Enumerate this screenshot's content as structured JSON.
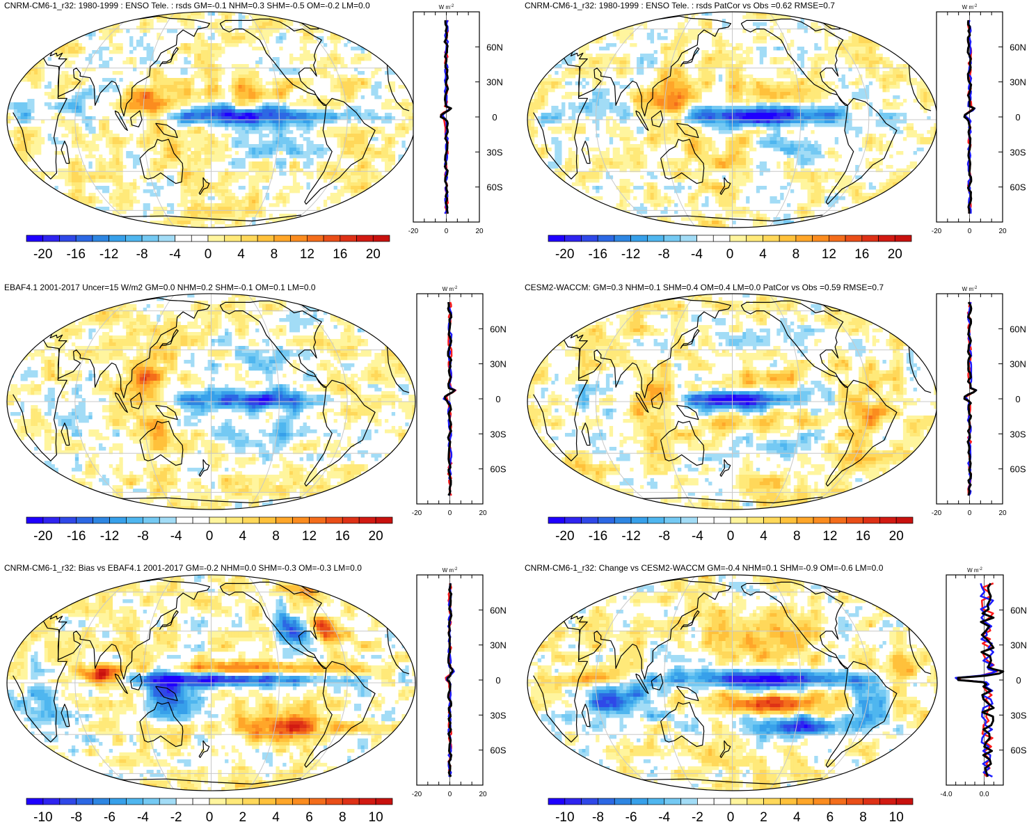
{
  "colors": {
    "positive": "#e0201b",
    "negative": "#1b2bd6",
    "zonal_red": "#ff1a1a",
    "zonal_blue": "#1a1aff",
    "zonal_black": "#000000",
    "land_line": "#000000",
    "graticule": "#c8c8c8"
  },
  "chart_data": [
    {
      "type": "heatmap",
      "title": "CNRM-CM6-1_r32: 1980-1999 : ENSO Tele. : rsds GM=-0.1 NHM=0.3 SHM=-0.5 OM=-0.2 LM=0.0",
      "colorbar": {
        "ticks": [
          "-20",
          "-16",
          "-12",
          "-8",
          "-4",
          "0",
          "4",
          "8",
          "12",
          "16",
          "20"
        ],
        "range": [
          -22,
          22
        ]
      },
      "zonal_profile": {
        "unit": "W m",
        "unit_exp": "-2",
        "xticks": [
          "-20",
          "0",
          "20"
        ],
        "xlim": [
          -20,
          20
        ],
        "lat_ticks": [
          "60N",
          "30N",
          "0",
          "30S",
          "60S"
        ],
        "lat_values": [
          60,
          30,
          0,
          -30,
          -60
        ],
        "style": "ensso"
      },
      "features": [
        {
          "lon": -150,
          "lat": 2,
          "w": 95,
          "h": 5,
          "v": -20
        },
        {
          "lon": -120,
          "lat": -15,
          "w": 40,
          "h": 8,
          "v": -7
        },
        {
          "lon": 125,
          "lat": 8,
          "w": 25,
          "h": 14,
          "v": 10
        },
        {
          "lon": 160,
          "lat": -22,
          "w": 30,
          "h": 10,
          "v": 5
        },
        {
          "lon": -150,
          "lat": 16,
          "w": 60,
          "h": 7,
          "v": 4
        },
        {
          "lon": 60,
          "lat": 8,
          "w": 25,
          "h": 10,
          "v": -5
        },
        {
          "lon": 20,
          "lat": 5,
          "w": 15,
          "h": 10,
          "v": -5
        }
      ]
    },
    {
      "type": "heatmap",
      "title": "CNRM-CM6-1_r32: 1980-1999 : ENSO Tele. : rsds PatCor vs Obs =0.62 RMSE=0.7",
      "colorbar": {
        "ticks": [
          "-20",
          "-16",
          "-12",
          "-8",
          "-4",
          "0",
          "4",
          "8",
          "12",
          "16",
          "20"
        ],
        "range": [
          -22,
          22
        ]
      },
      "zonal_profile": {
        "unit": "W m",
        "unit_exp": "-2",
        "xticks": [
          "-20",
          "0",
          "20"
        ],
        "xlim": [
          -20,
          20
        ],
        "lat_ticks": [
          "60N",
          "30N",
          "0",
          "30S",
          "60S"
        ],
        "lat_values": [
          60,
          30,
          0,
          -30,
          -60
        ],
        "style": "ensso"
      },
      "features": [
        {
          "lon": -150,
          "lat": 2,
          "w": 95,
          "h": 5,
          "v": -20
        },
        {
          "lon": -120,
          "lat": -15,
          "w": 40,
          "h": 8,
          "v": -7
        },
        {
          "lon": 125,
          "lat": 8,
          "w": 25,
          "h": 14,
          "v": 10
        },
        {
          "lon": 160,
          "lat": -22,
          "w": 30,
          "h": 10,
          "v": 5
        },
        {
          "lon": -150,
          "lat": 16,
          "w": 60,
          "h": 7,
          "v": 4
        },
        {
          "lon": 60,
          "lat": 8,
          "w": 25,
          "h": 10,
          "v": -5
        },
        {
          "lon": 20,
          "lat": 5,
          "w": 15,
          "h": 10,
          "v": -5
        }
      ]
    },
    {
      "type": "heatmap",
      "title": "EBAF4.1 2001-2017 Uncer=15 W/m2 GM=0.0 NHM=0.2 SHM=-0.1 OM=0.1 LM=0.0",
      "colorbar": {
        "ticks": [
          "-20",
          "-16",
          "-12",
          "-8",
          "-4",
          "0",
          "4",
          "8",
          "12",
          "16",
          "20"
        ],
        "range": [
          -22,
          22
        ]
      },
      "zonal_profile": {
        "unit": "W m",
        "unit_exp": "-2",
        "xticks": [
          "-20",
          "0",
          "20"
        ],
        "xlim": [
          -20,
          20
        ],
        "lat_ticks": [
          "60N",
          "30N",
          "0",
          "30S",
          "60S"
        ],
        "lat_values": [
          60,
          30,
          0,
          -30,
          -60
        ],
        "style": "ensso"
      },
      "features": [
        {
          "lon": -150,
          "lat": 1,
          "w": 75,
          "h": 6,
          "v": -17
        },
        {
          "lon": -140,
          "lat": -18,
          "w": 50,
          "h": 12,
          "v": -7
        },
        {
          "lon": 120,
          "lat": 10,
          "w": 22,
          "h": 16,
          "v": 13
        },
        {
          "lon": 130,
          "lat": -18,
          "w": 20,
          "h": 12,
          "v": 7
        },
        {
          "lon": -130,
          "lat": 25,
          "w": 45,
          "h": 12,
          "v": -5
        },
        {
          "lon": -60,
          "lat": -5,
          "w": 20,
          "h": 15,
          "v": 4
        },
        {
          "lon": 60,
          "lat": -10,
          "w": 30,
          "h": 12,
          "v": -4
        }
      ]
    },
    {
      "type": "heatmap",
      "title": "CESM2-WACCM: GM=0.3 NHM=0.1 SHM=0.4 OM=0.4 LM=0.0 PatCor vs Obs =0.59 RMSE=0.7",
      "colorbar": {
        "ticks": [
          "-20",
          "-16",
          "-12",
          "-8",
          "-4",
          "0",
          "4",
          "8",
          "12",
          "16",
          "20"
        ],
        "range": [
          -22,
          22
        ]
      },
      "zonal_profile": {
        "unit": "W m",
        "unit_exp": "-2",
        "xticks": [
          "-20",
          "0",
          "20"
        ],
        "xlim": [
          -20,
          20
        ],
        "lat_ticks": [
          "60N",
          "30N",
          "0",
          "30S",
          "60S"
        ],
        "lat_values": [
          60,
          30,
          0,
          -30,
          -60
        ],
        "style": "ensso"
      },
      "features": [
        {
          "lon": 175,
          "lat": 1,
          "w": 40,
          "h": 5,
          "v": -20
        },
        {
          "lon": -150,
          "lat": 1,
          "w": 60,
          "h": 5,
          "v": -10
        },
        {
          "lon": -150,
          "lat": 12,
          "w": 55,
          "h": 6,
          "v": 5
        },
        {
          "lon": -150,
          "lat": -12,
          "w": 55,
          "h": 6,
          "v": 5
        },
        {
          "lon": -150,
          "lat": -25,
          "w": 60,
          "h": 8,
          "v": -5
        },
        {
          "lon": -60,
          "lat": -10,
          "w": 25,
          "h": 20,
          "v": 6
        },
        {
          "lon": 110,
          "lat": 0,
          "w": 25,
          "h": 15,
          "v": 6
        },
        {
          "lon": 60,
          "lat": 0,
          "w": 25,
          "h": 10,
          "v": -5
        },
        {
          "lon": -150,
          "lat": 35,
          "w": 45,
          "h": 8,
          "v": -6
        },
        {
          "lon": -150,
          "lat": -50,
          "w": 45,
          "h": 8,
          "v": 3
        }
      ]
    },
    {
      "type": "heatmap",
      "title": "CNRM-CM6-1_r32: Bias vs EBAF4.1 2001-2017 GM=-0.2 NHM=0.0 SHM=-0.3 OM=-0.3 LM=0.0",
      "colorbar": {
        "ticks": [
          "-10",
          "-8",
          "-6",
          "-4",
          "-2",
          "0",
          "2",
          "4",
          "6",
          "8",
          "10"
        ],
        "range": [
          -11,
          11
        ]
      },
      "zonal_profile": {
        "unit": "W m",
        "unit_exp": "-2",
        "xticks": [
          "-20",
          "0",
          "20"
        ],
        "xlim": [
          -20,
          20
        ],
        "lat_ticks": [
          "60N",
          "30N",
          "0",
          "30S",
          "60S"
        ],
        "lat_values": [
          60,
          30,
          0,
          -30,
          -60
        ],
        "style": "bias"
      },
      "features": [
        {
          "lon": -160,
          "lat": 2,
          "w": 100,
          "h": 4,
          "v": -10
        },
        {
          "lon": -160,
          "lat": 8,
          "w": 90,
          "h": 4,
          "v": 8
        },
        {
          "lon": -110,
          "lat": -25,
          "w": 45,
          "h": 10,
          "v": 9
        },
        {
          "lon": 140,
          "lat": -5,
          "w": 30,
          "h": 15,
          "v": -7
        },
        {
          "lon": 80,
          "lat": 4,
          "w": 20,
          "h": 5,
          "v": 9
        },
        {
          "lon": -100,
          "lat": 30,
          "w": 20,
          "h": 15,
          "v": -6
        },
        {
          "lon": -70,
          "lat": 30,
          "w": 15,
          "h": 10,
          "v": 7
        },
        {
          "lon": 30,
          "lat": -10,
          "w": 30,
          "h": 15,
          "v": -4
        },
        {
          "lon": -60,
          "lat": 60,
          "w": 40,
          "h": 10,
          "v": 3
        }
      ]
    },
    {
      "type": "heatmap",
      "title": "CNRM-CM6-1_r32: Change vs CESM2-WACCM GM=-0.4 NHM=0.1 SHM=-0.9 OM=-0.6 LM=0.0",
      "colorbar": {
        "ticks": [
          "-10",
          "-8",
          "-6",
          "-4",
          "-2",
          "0",
          "2",
          "4",
          "6",
          "8",
          "10"
        ],
        "range": [
          -11,
          11
        ]
      },
      "zonal_profile": {
        "unit": "W m",
        "unit_exp": "-2",
        "xticks": [
          "-4.0",
          "0.0"
        ],
        "xlim": [
          -4,
          2
        ],
        "lat_ticks": [
          "60N",
          "30N",
          "0",
          "30S",
          "60S"
        ],
        "lat_values": [
          60,
          30,
          0,
          -30,
          -60
        ],
        "style": "change"
      },
      "features": [
        {
          "lon": -150,
          "lat": 2,
          "w": 100,
          "h": 5,
          "v": -11
        },
        {
          "lon": -140,
          "lat": -12,
          "w": 70,
          "h": 6,
          "v": 8
        },
        {
          "lon": -120,
          "lat": -25,
          "w": 55,
          "h": 8,
          "v": -7
        },
        {
          "lon": -150,
          "lat": 25,
          "w": 50,
          "h": 12,
          "v": 4
        },
        {
          "lon": 80,
          "lat": -10,
          "w": 40,
          "h": 10,
          "v": -8
        },
        {
          "lon": 60,
          "lat": 2,
          "w": 35,
          "h": 4,
          "v": 6
        },
        {
          "lon": -60,
          "lat": -15,
          "w": 20,
          "h": 15,
          "v": -6
        },
        {
          "lon": -30,
          "lat": 5,
          "w": 15,
          "h": 8,
          "v": 5
        }
      ]
    }
  ]
}
